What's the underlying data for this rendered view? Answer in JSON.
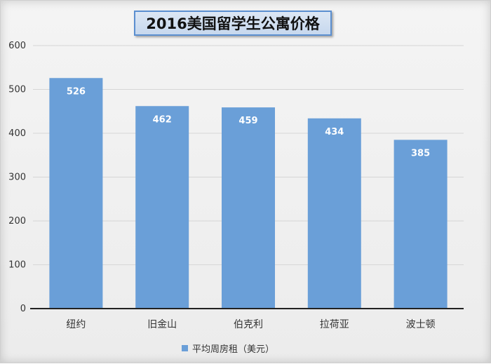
{
  "chart_data": {
    "type": "bar",
    "title": "2016美国留学生公寓价格",
    "categories": [
      "纽约",
      "旧金山",
      "伯克利",
      "拉荷亚",
      "波士顿"
    ],
    "series": [
      {
        "name": "平均周房租（美元）",
        "values": [
          526,
          462,
          459,
          434,
          385
        ]
      }
    ],
    "ylim": [
      0,
      600
    ],
    "yticks": [
      0,
      100,
      200,
      300,
      400,
      500,
      600
    ],
    "grid": true,
    "legend": "bottom",
    "bar_color": "#6a9fd8"
  }
}
